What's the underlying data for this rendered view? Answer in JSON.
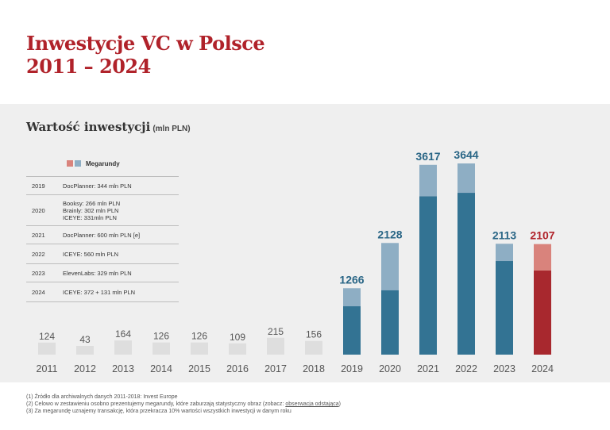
{
  "header": {
    "title_line1": "Inwestycje VC w Polsce",
    "title_line2": "2011 – 2024"
  },
  "section": {
    "title": "Wartość inwestycji",
    "unit": "(mln PLN)"
  },
  "legend": {
    "label": "Megarundy",
    "colors": [
      "#d9837c",
      "#8eaec4"
    ]
  },
  "megarounds_table": [
    {
      "year": "2019",
      "deals": [
        "DocPlanner: 344 mln PLN"
      ]
    },
    {
      "year": "2020",
      "deals": [
        "Booksy: 266 mln PLN",
        "Brainly: 302 mln PLN",
        "ICEYE: 331mln PLN"
      ]
    },
    {
      "year": "2021",
      "deals": [
        "DocPlanner: 600 mln PLN [e]"
      ]
    },
    {
      "year": "2022",
      "deals": [
        "ICEYE: 560 mln PLN"
      ]
    },
    {
      "year": "2023",
      "deals": [
        "ElevenLabs: 329 mln PLN"
      ]
    },
    {
      "year": "2024",
      "deals": [
        "ICEYE: 372 + 131 mln PLN"
      ]
    }
  ],
  "footnotes": {
    "line1": "(1) Źródło dla archiwalnych danych 2011-2018: Invest Europe",
    "line2_before": "(2) Celowo w zestawieniu osobno prezentujemy megarundy, które zaburzają statystyczny obraz (zobacz: ",
    "line2_link": "obserwacja odstająca",
    "line2_after": ")",
    "line3": "(3) Za megarundę uznajemy transakcję, która przekracza 10% wartości wszystkich inwestycji w danym roku"
  },
  "chart_data": {
    "type": "bar",
    "stacked": true,
    "categories": [
      "2011",
      "2012",
      "2013",
      "2014",
      "2015",
      "2016",
      "2017",
      "2018",
      "2019",
      "2020",
      "2021",
      "2022",
      "2023",
      "2024"
    ],
    "totals": [
      124,
      43,
      164,
      126,
      126,
      109,
      215,
      156,
      1266,
      2128,
      3617,
      3644,
      2113,
      2107
    ],
    "series": [
      {
        "values": [
          124,
          43,
          164,
          126,
          126,
          109,
          215,
          156,
          922,
          1229,
          3017,
          3084,
          1784,
          1604
        ]
      },
      {
        "name": "Megarundy",
        "values": [
          0,
          0,
          0,
          0,
          0,
          0,
          0,
          0,
          344,
          899,
          600,
          560,
          329,
          503
        ]
      }
    ],
    "colors": {
      "historical": "#dedede",
      "base": "#337393",
      "mega": "#8eaec4",
      "current_base": "#a8282e",
      "current_mega": "#d9837c",
      "label_historical": "#555555",
      "label_base": "#2a6686",
      "label_current": "#b0222a",
      "axis_text": "#555555"
    },
    "ylim": [
      0,
      3700
    ],
    "grid": false,
    "legend": "top-left"
  }
}
